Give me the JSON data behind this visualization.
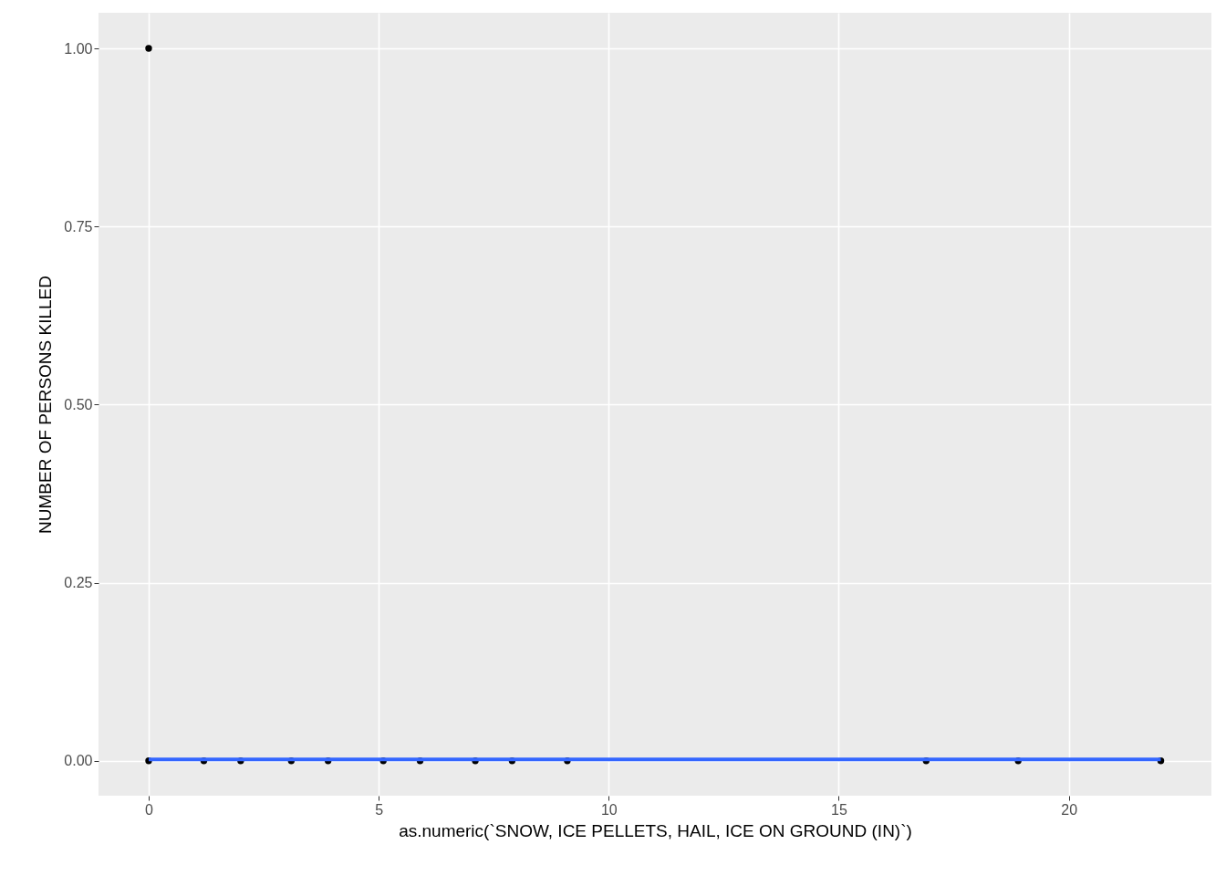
{
  "chart_data": {
    "type": "scatter",
    "xlabel": "as.numeric(`SNOW, ICE PELLETS, HAIL, ICE ON GROUND (IN)`)",
    "ylabel": "NUMBER OF PERSONS KILLED",
    "series": [
      {
        "marker": "circle",
        "color": "#000000",
        "x": [
          0,
          0,
          1.2,
          2.0,
          3.1,
          3.9,
          5.1,
          5.9,
          7.1,
          7.9,
          9.1,
          16.9,
          18.9,
          22.0
        ],
        "values": [
          1,
          0,
          0,
          0,
          0,
          0,
          0,
          0,
          0,
          0,
          0,
          0,
          0,
          0
        ]
      },
      {
        "type": "line",
        "color": "#3366ff",
        "x": [
          0,
          22.0
        ],
        "values": [
          0.002,
          0.002
        ]
      }
    ],
    "xlim": [
      -1.09,
      23.1
    ],
    "ylim": [
      -0.049,
      1.05
    ],
    "xticks": [
      0,
      5,
      10,
      15,
      20
    ],
    "yticks": [
      {
        "value": 0,
        "label": "0.00"
      },
      {
        "value": 0.25,
        "label": "0.25"
      },
      {
        "value": 0.5,
        "label": "0.50"
      },
      {
        "value": 0.75,
        "label": "0.75"
      },
      {
        "value": 1,
        "label": "1.00"
      }
    ],
    "grid": true
  }
}
